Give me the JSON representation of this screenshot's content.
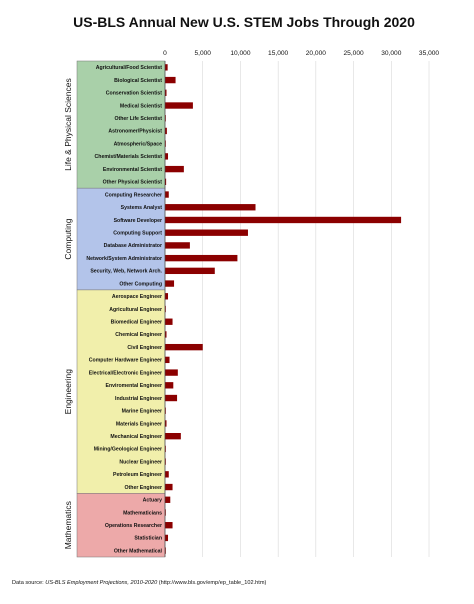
{
  "chart_data": {
    "type": "bar",
    "orientation": "horizontal",
    "title": "US-BLS Annual New U.S. STEM Jobs Through 2020",
    "xlim": [
      0,
      35000
    ],
    "xticks": [
      "0",
      "5,000",
      "10,000",
      "15,000",
      "20,000",
      "25,000",
      "30,000",
      "35,000"
    ],
    "bar_color": "#8b0000",
    "groups": [
      {
        "name": "Life & Physical Sciences",
        "color": "#a9d0a9",
        "categories": [
          "Agricultural/Food Scientist",
          "Biological Scientist",
          "Conservation Scientist",
          "Medical Scientist",
          "Other Life Scientist",
          "Astronomer/Physicist",
          "Atmospheric/Space",
          "Chemist/Materials Scientist",
          "Environmental Scientist",
          "Other Physical Scientist"
        ],
        "values": [
          350,
          1400,
          200,
          3700,
          100,
          250,
          80,
          400,
          2500,
          150
        ]
      },
      {
        "name": "Computing",
        "color": "#b3c4ea",
        "categories": [
          "Computing Researcher",
          "Systems Analyst",
          "Software Developer",
          "Computing Support",
          "Database Administrator",
          "Network/System Administrator",
          "Security, Web, Network Arch.",
          "Other Computing"
        ],
        "values": [
          500,
          12000,
          31300,
          11000,
          3300,
          9600,
          6600,
          1200
        ]
      },
      {
        "name": "Engineering",
        "color": "#f1efab",
        "categories": [
          "Aerospace Engineer",
          "Agricultural Engineer",
          "Biomedical Engineer",
          "Chemical Engineer",
          "Civil Engineer",
          "Computer Hardware Engineer",
          "Electrical/Electronic Engineer",
          "Enviromental Engineer",
          "Industrial Engineer",
          "Marine Engineer",
          "Materials Engineer",
          "Mechanical Engineer",
          "Mining/Geological Engineer",
          "Nuclear Engineer",
          "Petroleum Engineer",
          "Other Engineer"
        ],
        "values": [
          400,
          30,
          1000,
          200,
          5000,
          600,
          1700,
          1100,
          1600,
          100,
          200,
          2100,
          100,
          100,
          500,
          1000
        ]
      },
      {
        "name": "Mathematics",
        "color": "#eda9a9",
        "categories": [
          "Actuary",
          "Mathematicians",
          "Operations Researcher",
          "Statistician",
          "Other Mathematical"
        ],
        "values": [
          700,
          50,
          1000,
          400,
          50
        ]
      }
    ]
  },
  "footer": {
    "prefix": "Data source: ",
    "source_name": "US-BLS Employment Projections, 2010-2020",
    "url": " (http://www.bls.gov/emp/ep_table_102.htm)"
  }
}
